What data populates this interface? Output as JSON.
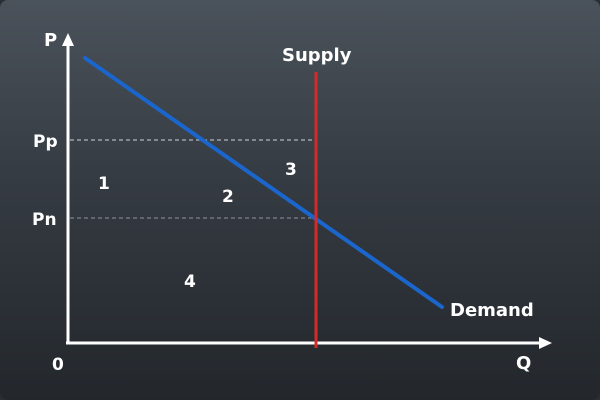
{
  "axes": {
    "y_label": "P",
    "x_label": "Q",
    "origin_label": "0"
  },
  "prices": {
    "pp_label": "Pp",
    "pn_label": "Pn"
  },
  "curves": {
    "supply_label": "Supply",
    "demand_label": "Demand",
    "supply_color": "#d42a2a",
    "demand_color": "#1a66cc"
  },
  "regions": {
    "r1": "1",
    "r2": "2",
    "r3": "3",
    "r4": "4"
  },
  "colors": {
    "axis": "#ffffff",
    "guide": "#cfd3d8"
  }
}
